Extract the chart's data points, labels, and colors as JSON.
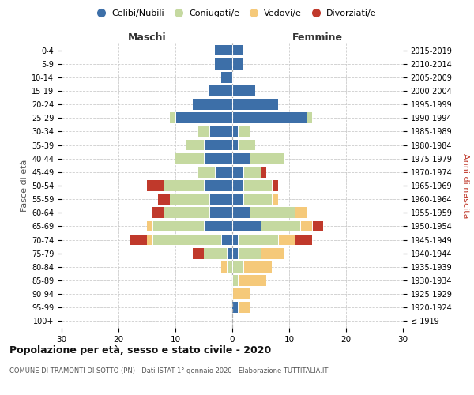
{
  "age_groups": [
    "100+",
    "95-99",
    "90-94",
    "85-89",
    "80-84",
    "75-79",
    "70-74",
    "65-69",
    "60-64",
    "55-59",
    "50-54",
    "45-49",
    "40-44",
    "35-39",
    "30-34",
    "25-29",
    "20-24",
    "15-19",
    "10-14",
    "5-9",
    "0-4"
  ],
  "birth_years": [
    "≤ 1919",
    "1920-1924",
    "1925-1929",
    "1930-1934",
    "1935-1939",
    "1940-1944",
    "1945-1949",
    "1950-1954",
    "1955-1959",
    "1960-1964",
    "1965-1969",
    "1970-1974",
    "1975-1979",
    "1980-1984",
    "1985-1989",
    "1990-1994",
    "1995-1999",
    "2000-2004",
    "2005-2009",
    "2010-2014",
    "2015-2019"
  ],
  "male": {
    "celibi": [
      0,
      0,
      0,
      0,
      0,
      1,
      2,
      5,
      4,
      4,
      5,
      3,
      5,
      5,
      4,
      10,
      7,
      4,
      2,
      3,
      3
    ],
    "coniugati": [
      0,
      0,
      0,
      0,
      1,
      4,
      12,
      9,
      8,
      7,
      7,
      3,
      5,
      3,
      2,
      1,
      0,
      0,
      0,
      0,
      0
    ],
    "vedovi": [
      0,
      0,
      0,
      0,
      1,
      0,
      1,
      1,
      0,
      0,
      0,
      0,
      0,
      0,
      0,
      0,
      0,
      0,
      0,
      0,
      0
    ],
    "divorziati": [
      0,
      0,
      0,
      0,
      0,
      2,
      3,
      0,
      2,
      2,
      3,
      0,
      0,
      0,
      0,
      0,
      0,
      0,
      0,
      0,
      0
    ]
  },
  "female": {
    "nubili": [
      0,
      1,
      0,
      0,
      0,
      1,
      1,
      5,
      3,
      2,
      2,
      2,
      3,
      1,
      1,
      13,
      8,
      4,
      0,
      2,
      2
    ],
    "coniugate": [
      0,
      0,
      0,
      1,
      2,
      4,
      7,
      7,
      8,
      5,
      5,
      3,
      6,
      3,
      2,
      1,
      0,
      0,
      0,
      0,
      0
    ],
    "vedove": [
      0,
      2,
      3,
      5,
      5,
      4,
      3,
      2,
      2,
      1,
      0,
      0,
      0,
      0,
      0,
      0,
      0,
      0,
      0,
      0,
      0
    ],
    "divorziate": [
      0,
      0,
      0,
      0,
      0,
      0,
      3,
      2,
      0,
      0,
      1,
      1,
      0,
      0,
      0,
      0,
      0,
      0,
      0,
      0,
      0
    ]
  },
  "colors": {
    "celibi_nubili": "#3d6fa8",
    "coniugati": "#c5d9a0",
    "vedovi": "#f5c97a",
    "divorziati": "#c0392b"
  },
  "title": "Popolazione per età, sesso e stato civile - 2020",
  "subtitle": "COMUNE DI TRAMONTI DI SOTTO (PN) - Dati ISTAT 1° gennaio 2020 - Elaborazione TUTTITALIA.IT",
  "xlabel_left": "Maschi",
  "xlabel_right": "Femmine",
  "ylabel_left": "Fasce di età",
  "ylabel_right": "Anni di nascita",
  "xlim": 30,
  "background_color": "#ffffff",
  "grid_color": "#cccccc"
}
